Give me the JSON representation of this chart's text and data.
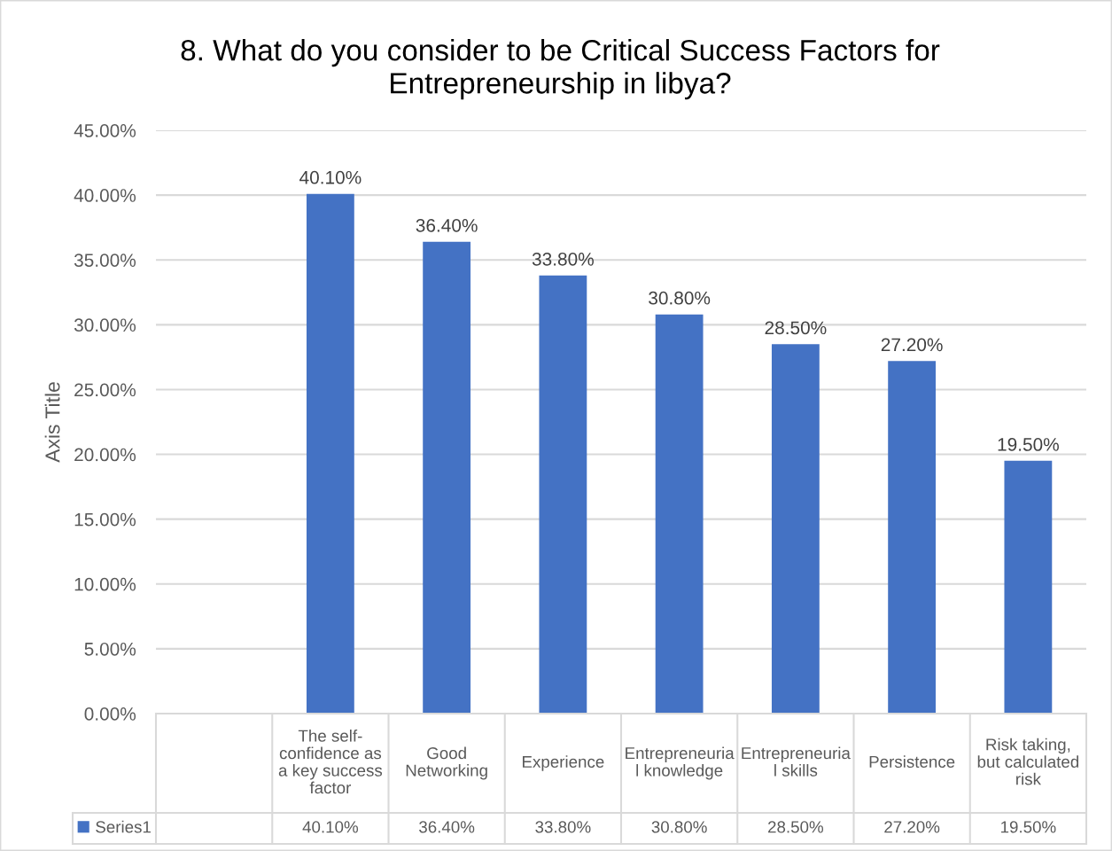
{
  "chart_data": {
    "type": "bar",
    "title": "8. What do you consider to be Critical Success Factors for\nEntrepreneurship in libya?",
    "ylabel": "Axis Title",
    "categories": [
      null,
      "The self-\nconfidence as\na key success\nfactor",
      "Good\nNetworking",
      "Experience",
      "Entrepreneuria\nl knowledge",
      "Entrepreneuria\nl skills",
      "Persistence",
      "Risk taking,\nbut calculated\nrisk"
    ],
    "series": [
      {
        "name": "Series1",
        "color": "#4472c4",
        "values": [
          null,
          40.1,
          36.4,
          33.8,
          30.8,
          28.5,
          27.2,
          19.5
        ],
        "value_labels": [
          null,
          "40.10%",
          "36.40%",
          "33.80%",
          "30.80%",
          "28.50%",
          "27.20%",
          "19.50%"
        ]
      }
    ],
    "ylim": [
      0,
      45
    ],
    "yticks": [
      {
        "value": 0,
        "label": "0.00%"
      },
      {
        "value": 5,
        "label": "5.00%"
      },
      {
        "value": 10,
        "label": "10.00%"
      },
      {
        "value": 15,
        "label": "15.00%"
      },
      {
        "value": 20,
        "label": "20.00%"
      },
      {
        "value": 25,
        "label": "25.00%"
      },
      {
        "value": 30,
        "label": "30.00%"
      },
      {
        "value": 35,
        "label": "35.00%"
      },
      {
        "value": 40,
        "label": "40.00%"
      },
      {
        "value": 45,
        "label": "45.00%"
      }
    ],
    "grid": "y",
    "legend": "bottom"
  }
}
